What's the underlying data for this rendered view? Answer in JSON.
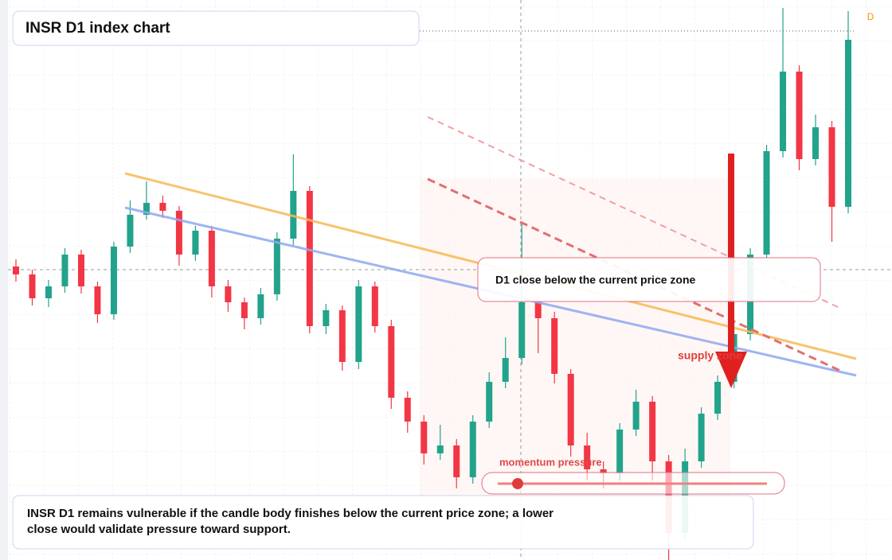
{
  "chart_data": {
    "type": "candlestick",
    "title": "INSR D1 index chart",
    "badge": "D",
    "callout": "D1 close below the current price zone",
    "zone_label": "supply zone",
    "meter_label": "momentum pressure",
    "note": "INSR D1 remains vulnerable if the candle body finishes below the current price zone; a lower close would validate pressure toward support.",
    "up_color": "#22a38b",
    "down_color": "#f23645",
    "ylim": [
      0,
      704
    ],
    "open": [
      369,
      359,
      329,
      344,
      384,
      344,
      309,
      394,
      434,
      449,
      439,
      384,
      414,
      344,
      324,
      304,
      334,
      404,
      464,
      294,
      314,
      249,
      344,
      294,
      204,
      174,
      134,
      144,
      104,
      174,
      224,
      254,
      324,
      304,
      234,
      144,
      114,
      109,
      164,
      199,
      124,
      34,
      124,
      184,
      224,
      284,
      384,
      514,
      614,
      504,
      544,
      444
    ],
    "high": [
      378,
      365,
      352,
      392,
      390,
      350,
      400,
      452,
      476,
      458,
      445,
      420,
      420,
      352,
      330,
      342,
      412,
      510,
      470,
      322,
      320,
      352,
      350,
      302,
      212,
      182,
      170,
      152,
      182,
      236,
      280,
      424,
      332,
      312,
      240,
      160,
      124,
      172,
      214,
      206,
      132,
      140,
      192,
      232,
      300,
      392,
      522,
      694,
      622,
      560,
      552,
      690
    ],
    "low": [
      350,
      320,
      318,
      336,
      335,
      298,
      302,
      386,
      428,
      430,
      370,
      376,
      330,
      312,
      290,
      296,
      326,
      396,
      285,
      284,
      238,
      240,
      286,
      190,
      160,
      120,
      126,
      90,
      96,
      166,
      216,
      246,
      260,
      222,
      130,
      100,
      90,
      100,
      156,
      100,
      0,
      26,
      116,
      176,
      216,
      276,
      376,
      506,
      490,
      496,
      400,
      436
    ],
    "close": [
      359,
      329,
      344,
      384,
      344,
      309,
      394,
      434,
      449,
      439,
      384,
      414,
      344,
      324,
      304,
      334,
      404,
      464,
      294,
      314,
      249,
      344,
      294,
      204,
      174,
      134,
      144,
      104,
      174,
      224,
      254,
      324,
      304,
      234,
      144,
      114,
      109,
      164,
      199,
      124,
      34,
      124,
      184,
      224,
      284,
      384,
      514,
      614,
      504,
      544,
      444,
      654
    ]
  }
}
